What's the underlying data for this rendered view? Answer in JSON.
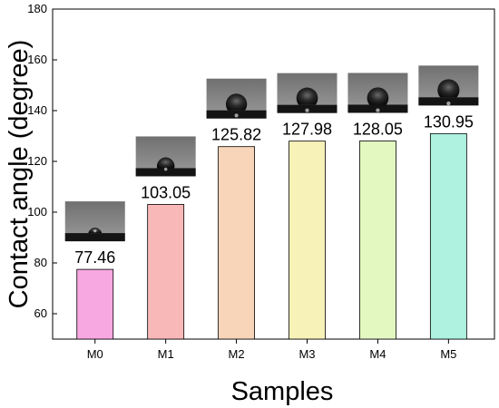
{
  "chart_data": {
    "type": "bar",
    "xlabel": "Samples",
    "ylabel": "Contact angle (degree)",
    "ylim": [
      50,
      180
    ],
    "yticks": [
      60,
      80,
      100,
      120,
      140,
      160,
      180
    ],
    "categories": [
      "M0",
      "M1",
      "M2",
      "M3",
      "M4",
      "M5"
    ],
    "values": [
      77.46,
      103.05,
      125.82,
      127.98,
      128.05,
      130.95
    ],
    "value_labels": [
      "77.46",
      "103.05",
      "125.82",
      "127.98",
      "128.05",
      "130.95"
    ],
    "bar_colors": [
      "#f7a8e0",
      "#f9b8b8",
      "#f8d5b8",
      "#f6f2b8",
      "#e2f8c0",
      "#aef2df"
    ],
    "grid": false,
    "legend": "none",
    "insets": "droplet contact-angle photo above each bar"
  }
}
